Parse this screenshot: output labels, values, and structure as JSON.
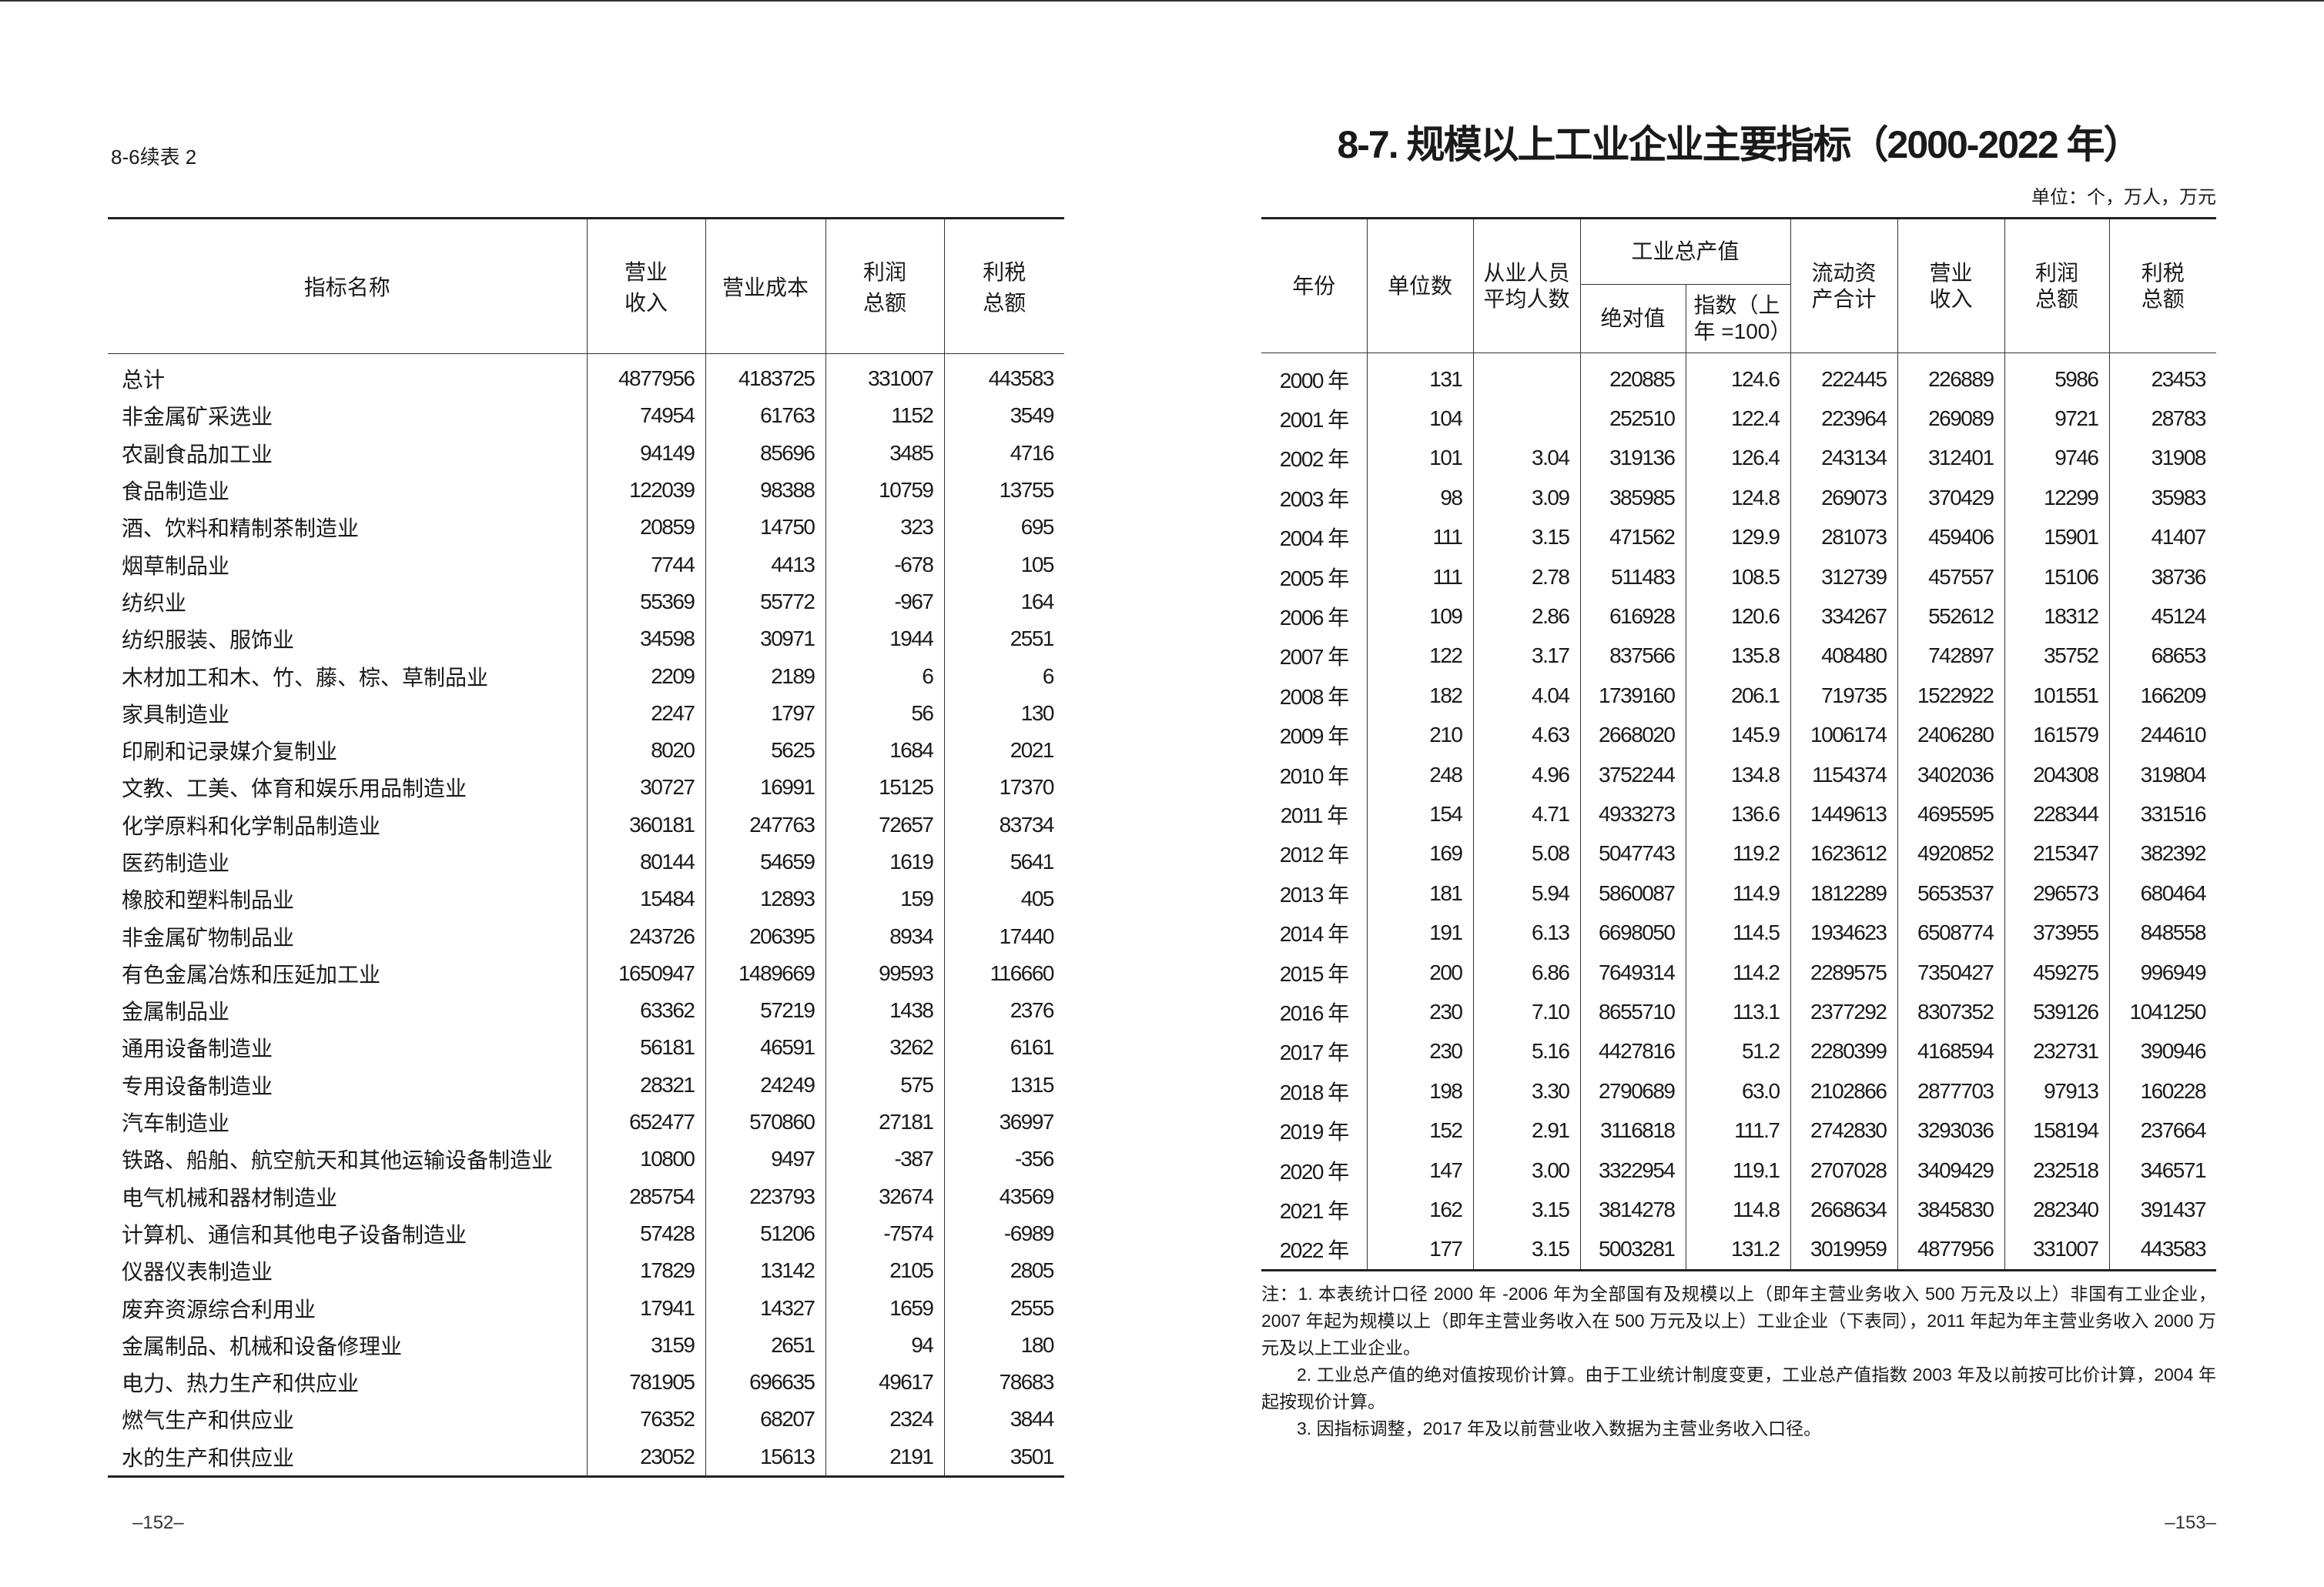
{
  "left_page": {
    "table_label": "8-6续表 2",
    "page_number": "–152–",
    "headers": [
      "指标名称",
      "营业收入",
      "营业成本",
      "利润总额",
      "利税总额"
    ],
    "rows": [
      [
        "总计",
        "4877956",
        "4183725",
        "331007",
        "443583"
      ],
      [
        "非金属矿采选业",
        "74954",
        "61763",
        "1152",
        "3549"
      ],
      [
        "农副食品加工业",
        "94149",
        "85696",
        "3485",
        "4716"
      ],
      [
        "食品制造业",
        "122039",
        "98388",
        "10759",
        "13755"
      ],
      [
        "酒、饮料和精制茶制造业",
        "20859",
        "14750",
        "323",
        "695"
      ],
      [
        "烟草制品业",
        "7744",
        "4413",
        "-678",
        "105"
      ],
      [
        "纺织业",
        "55369",
        "55772",
        "-967",
        "164"
      ],
      [
        "纺织服装、服饰业",
        "34598",
        "30971",
        "1944",
        "2551"
      ],
      [
        "木材加工和木、竹、藤、棕、草制品业",
        "2209",
        "2189",
        "6",
        "6"
      ],
      [
        "家具制造业",
        "2247",
        "1797",
        "56",
        "130"
      ],
      [
        "印刷和记录媒介复制业",
        "8020",
        "5625",
        "1684",
        "2021"
      ],
      [
        "文教、工美、体育和娱乐用品制造业",
        "30727",
        "16991",
        "15125",
        "17370"
      ],
      [
        "化学原料和化学制品制造业",
        "360181",
        "247763",
        "72657",
        "83734"
      ],
      [
        "医药制造业",
        "80144",
        "54659",
        "1619",
        "5641"
      ],
      [
        "橡胶和塑料制品业",
        "15484",
        "12893",
        "159",
        "405"
      ],
      [
        "非金属矿物制品业",
        "243726",
        "206395",
        "8934",
        "17440"
      ],
      [
        "有色金属冶炼和压延加工业",
        "1650947",
        "1489669",
        "99593",
        "116660"
      ],
      [
        "金属制品业",
        "63362",
        "57219",
        "1438",
        "2376"
      ],
      [
        "通用设备制造业",
        "56181",
        "46591",
        "3262",
        "6161"
      ],
      [
        "专用设备制造业",
        "28321",
        "24249",
        "575",
        "1315"
      ],
      [
        "汽车制造业",
        "652477",
        "570860",
        "27181",
        "36997"
      ],
      [
        "铁路、船舶、航空航天和其他运输设备制造业",
        "10800",
        "9497",
        "-387",
        "-356"
      ],
      [
        "电气机械和器材制造业",
        "285754",
        "223793",
        "32674",
        "43569"
      ],
      [
        "计算机、通信和其他电子设备制造业",
        "57428",
        "51206",
        "-7574",
        "-6989"
      ],
      [
        "仪器仪表制造业",
        "17829",
        "13142",
        "2105",
        "2805"
      ],
      [
        "废弃资源综合利用业",
        "17941",
        "14327",
        "1659",
        "2555"
      ],
      [
        "金属制品、机械和设备修理业",
        "3159",
        "2651",
        "94",
        "180"
      ],
      [
        "电力、热力生产和供应业",
        "781905",
        "696635",
        "49617",
        "78683"
      ],
      [
        "燃气生产和供应业",
        "76352",
        "68207",
        "2324",
        "3844"
      ],
      [
        "水的生产和供应业",
        "23052",
        "15613",
        "2191",
        "3501"
      ]
    ]
  },
  "right_page": {
    "title": "8-7. 规模以上工业企业主要指标（2000-2022 年）",
    "unit": "单位：个，万人，万元",
    "page_number": "–153–",
    "headers": {
      "year": "年份",
      "units": "单位数",
      "employees": "从业人员平均人数",
      "gross_output_group": "工业总产值",
      "absolute": "绝对值",
      "index": "指数（上年 =100）",
      "current_assets": "流动资产合计",
      "revenue": "营业收入",
      "profit": "利润总额",
      "profit_tax": "利税总额"
    },
    "rows": [
      [
        "2000 年",
        "131",
        "",
        "220885",
        "124.6",
        "222445",
        "226889",
        "5986",
        "23453"
      ],
      [
        "2001 年",
        "104",
        "",
        "252510",
        "122.4",
        "223964",
        "269089",
        "9721",
        "28783"
      ],
      [
        "2002 年",
        "101",
        "3.04",
        "319136",
        "126.4",
        "243134",
        "312401",
        "9746",
        "31908"
      ],
      [
        "2003 年",
        "98",
        "3.09",
        "385985",
        "124.8",
        "269073",
        "370429",
        "12299",
        "35983"
      ],
      [
        "2004 年",
        "111",
        "3.15",
        "471562",
        "129.9",
        "281073",
        "459406",
        "15901",
        "41407"
      ],
      [
        "2005 年",
        "111",
        "2.78",
        "511483",
        "108.5",
        "312739",
        "457557",
        "15106",
        "38736"
      ],
      [
        "2006 年",
        "109",
        "2.86",
        "616928",
        "120.6",
        "334267",
        "552612",
        "18312",
        "45124"
      ],
      [
        "2007 年",
        "122",
        "3.17",
        "837566",
        "135.8",
        "408480",
        "742897",
        "35752",
        "68653"
      ],
      [
        "2008 年",
        "182",
        "4.04",
        "1739160",
        "206.1",
        "719735",
        "1522922",
        "101551",
        "166209"
      ],
      [
        "2009 年",
        "210",
        "4.63",
        "2668020",
        "145.9",
        "1006174",
        "2406280",
        "161579",
        "244610"
      ],
      [
        "2010 年",
        "248",
        "4.96",
        "3752244",
        "134.8",
        "1154374",
        "3402036",
        "204308",
        "319804"
      ],
      [
        "2011 年",
        "154",
        "4.71",
        "4933273",
        "136.6",
        "1449613",
        "4695595",
        "228344",
        "331516"
      ],
      [
        "2012 年",
        "169",
        "5.08",
        "5047743",
        "119.2",
        "1623612",
        "4920852",
        "215347",
        "382392"
      ],
      [
        "2013 年",
        "181",
        "5.94",
        "5860087",
        "114.9",
        "1812289",
        "5653537",
        "296573",
        "680464"
      ],
      [
        "2014 年",
        "191",
        "6.13",
        "6698050",
        "114.5",
        "1934623",
        "6508774",
        "373955",
        "848558"
      ],
      [
        "2015 年",
        "200",
        "6.86",
        "7649314",
        "114.2",
        "2289575",
        "7350427",
        "459275",
        "996949"
      ],
      [
        "2016 年",
        "230",
        "7.10",
        "8655710",
        "113.1",
        "2377292",
        "8307352",
        "539126",
        "1041250"
      ],
      [
        "2017 年",
        "230",
        "5.16",
        "4427816",
        "51.2",
        "2280399",
        "4168594",
        "232731",
        "390946"
      ],
      [
        "2018 年",
        "198",
        "3.30",
        "2790689",
        "63.0",
        "2102866",
        "2877703",
        "97913",
        "160228"
      ],
      [
        "2019 年",
        "152",
        "2.91",
        "3116818",
        "111.7",
        "2742830",
        "3293036",
        "158194",
        "237664"
      ],
      [
        "2020 年",
        "147",
        "3.00",
        "3322954",
        "119.1",
        "2707028",
        "3409429",
        "232518",
        "346571"
      ],
      [
        "2021 年",
        "162",
        "3.15",
        "3814278",
        "114.8",
        "2668634",
        "3845830",
        "282340",
        "391437"
      ],
      [
        "2022 年",
        "177",
        "3.15",
        "5003281",
        "131.2",
        "3019959",
        "4877956",
        "331007",
        "443583"
      ]
    ],
    "notes": [
      "注：1. 本表统计口径 2000 年 -2006 年为全部国有及规模以上（即年主营业务收入 500 万元及以上）非国有工业企业，2007 年起为规模以上（即年主营业务收入在 500 万元及以上）工业企业（下表同），2011 年起为年主营业务收入 2000 万元及以上工业企业。",
      "2. 工业总产值的绝对值按现价计算。由于工业统计制度变更，工业总产值指数 2003 年及以前按可比价计算，2004 年起按现价计算。",
      "3. 因指标调整，2017 年及以前营业收入数据为主营业务收入口径。"
    ]
  }
}
